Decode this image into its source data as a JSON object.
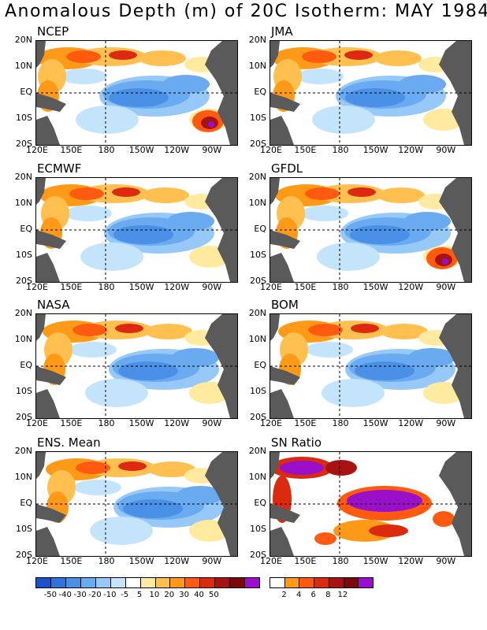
{
  "title": "Anomalous Depth (m) of 20C Isotherm: MAY 1984",
  "panels": [
    {
      "name": "NCEP"
    },
    {
      "name": "JMA"
    },
    {
      "name": "ECMWF"
    },
    {
      "name": "GFDL"
    },
    {
      "name": "NASA"
    },
    {
      "name": "BOM"
    },
    {
      "name": "ENS. Mean"
    },
    {
      "name": "SN Ratio"
    }
  ],
  "lat_labels": [
    "20N",
    "10N",
    "EQ",
    "10S",
    "20S"
  ],
  "lon_labels": [
    "120E",
    "150E",
    "180",
    "150W",
    "120W",
    "90W"
  ],
  "anomaly_colorbar": {
    "colors": [
      "#1a52c8",
      "#2e72dc",
      "#4a90e6",
      "#6aaaf0",
      "#96c8f8",
      "#c4e4fc",
      "#ffffff",
      "#ffeaa0",
      "#ffc050",
      "#ff9a18",
      "#ff5a10",
      "#dc2a10",
      "#a81212",
      "#7a0a0a",
      "#9a10c8"
    ],
    "labels": [
      "-50",
      "-40",
      "-30",
      "-20",
      "-10",
      "-5",
      "5",
      "10",
      "20",
      "30",
      "40",
      "50"
    ]
  },
  "sn_colorbar": {
    "colors": [
      "#ffffff",
      "#ff9a18",
      "#ff5a10",
      "#dc2a10",
      "#a81212",
      "#7a0a0a",
      "#9a10c8"
    ],
    "labels": [
      "2",
      "4",
      "6",
      "8",
      "12"
    ]
  },
  "colors": {
    "land": "#5a5a5a",
    "frame": "#000000"
  }
}
